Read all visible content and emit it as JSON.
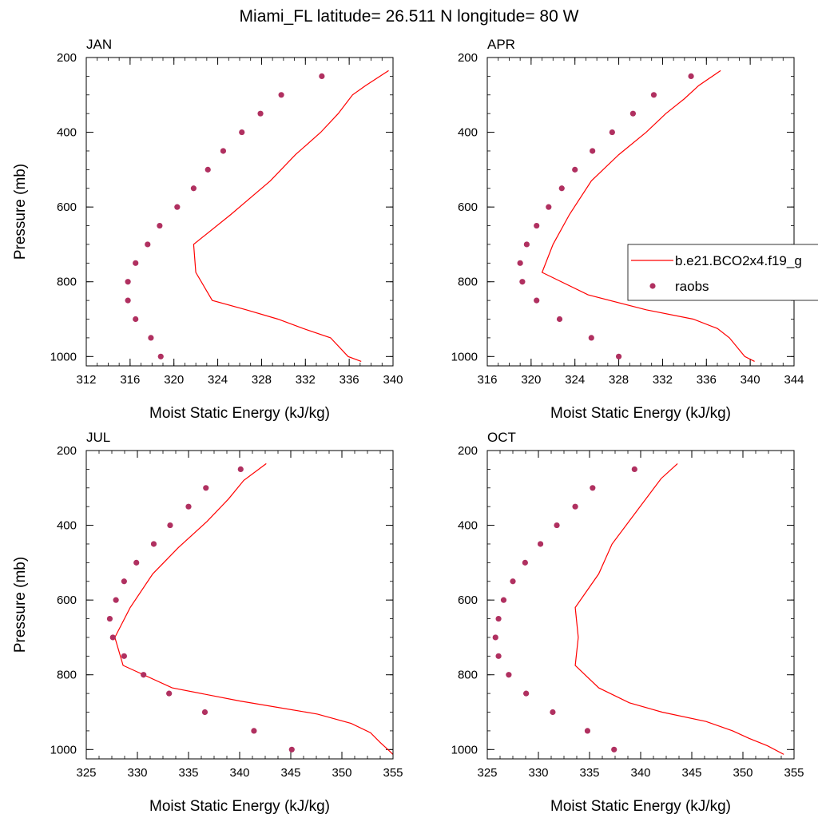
{
  "figure_title": "Miami_FL  latitude= 26.511 N longitude= 80 W",
  "legend": {
    "model_label": "b.e21.BCO2x4.f19_g",
    "obs_label": "raobs",
    "line_color": "#ff0000",
    "marker_color": "#b03060"
  },
  "chart_data": [
    {
      "type": "line",
      "title": "JAN",
      "xlabel": "Moist Static Energy (kJ/kg)",
      "ylabel": "Pressure (mb)",
      "xlim": [
        312,
        340
      ],
      "ylim": [
        200,
        1025
      ],
      "y_reversed": true,
      "xticks": [
        312,
        316,
        320,
        324,
        328,
        332,
        336,
        340
      ],
      "yticks": [
        200,
        400,
        600,
        800,
        1000
      ],
      "series": [
        {
          "name": "b.e21.BCO2x4.f19_g",
          "x": [
            337.1,
            335.9,
            334.3,
            331.8,
            329.5,
            326.6,
            323.5,
            322.0,
            321.8,
            325.2,
            328.8,
            331.1,
            333.4,
            335.0,
            336.3,
            337.5,
            339.6
          ],
          "y": [
            1013,
            1000,
            950,
            925,
            900,
            875,
            850,
            775,
            700,
            620,
            530,
            460,
            400,
            350,
            300,
            275,
            235
          ]
        },
        {
          "name": "raobs",
          "x": [
            318.8,
            317.9,
            316.5,
            315.8,
            315.8,
            316.5,
            317.6,
            318.7,
            320.3,
            321.8,
            323.1,
            324.5,
            326.2,
            327.9,
            329.8,
            333.5
          ],
          "y": [
            1000,
            950,
            900,
            850,
            800,
            750,
            700,
            650,
            600,
            550,
            500,
            450,
            400,
            350,
            300,
            250
          ]
        }
      ]
    },
    {
      "type": "line",
      "title": "APR",
      "xlabel": "Moist Static Energy (kJ/kg)",
      "ylabel": "",
      "xlim": [
        316,
        344
      ],
      "ylim": [
        200,
        1025
      ],
      "y_reversed": true,
      "xticks": [
        316,
        320,
        324,
        328,
        332,
        336,
        340,
        344
      ],
      "yticks": [
        200,
        400,
        600,
        800,
        1000
      ],
      "series": [
        {
          "name": "b.e21.BCO2x4.f19_g",
          "x": [
            340.4,
            339.5,
            338.1,
            337.0,
            334.8,
            330.5,
            325.2,
            321.0,
            322.0,
            323.5,
            325.5,
            328.0,
            330.5,
            332.3,
            334.0,
            335.3,
            337.3
          ],
          "y": [
            1013,
            1000,
            950,
            925,
            900,
            875,
            835,
            775,
            700,
            620,
            530,
            460,
            400,
            350,
            310,
            275,
            235
          ]
        },
        {
          "name": "raobs",
          "x": [
            328.0,
            325.5,
            322.6,
            320.5,
            319.2,
            319.0,
            319.6,
            320.5,
            321.6,
            322.8,
            324.0,
            325.6,
            327.4,
            329.3,
            331.2,
            334.6
          ],
          "y": [
            1000,
            950,
            900,
            850,
            800,
            750,
            700,
            650,
            600,
            550,
            500,
            450,
            400,
            350,
            300,
            250
          ]
        }
      ]
    },
    {
      "type": "line",
      "title": "JUL",
      "xlabel": "Moist Static Energy (kJ/kg)",
      "ylabel": "Pressure (mb)",
      "xlim": [
        325,
        355
      ],
      "ylim": [
        200,
        1025
      ],
      "y_reversed": true,
      "xticks": [
        325,
        330,
        335,
        340,
        345,
        350,
        355
      ],
      "yticks": [
        200,
        400,
        600,
        800,
        1000
      ],
      "series": [
        {
          "name": "b.e21.BCO2x4.f19_g",
          "x": [
            355.0,
            354.5,
            353.7,
            352.8,
            350.9,
            347.6,
            340.0,
            333.4,
            328.6,
            327.8,
            329.3,
            331.5,
            334.0,
            336.8,
            338.9,
            340.4,
            342.6
          ],
          "y": [
            1013,
            1000,
            980,
            955,
            930,
            905,
            870,
            835,
            775,
            700,
            620,
            530,
            460,
            390,
            330,
            280,
            235
          ]
        },
        {
          "name": "raobs",
          "x": [
            345.1,
            341.4,
            336.6,
            333.1,
            330.6,
            328.7,
            327.6,
            327.3,
            327.9,
            328.7,
            329.9,
            331.6,
            333.2,
            335.0,
            336.7,
            340.1
          ],
          "y": [
            1000,
            950,
            900,
            850,
            800,
            750,
            700,
            650,
            600,
            550,
            500,
            450,
            400,
            350,
            300,
            250
          ]
        }
      ]
    },
    {
      "type": "line",
      "title": "OCT",
      "xlabel": "Moist Static Energy (kJ/kg)",
      "ylabel": "",
      "xlim": [
        325,
        355
      ],
      "ylim": [
        200,
        1025
      ],
      "y_reversed": true,
      "xticks": [
        325,
        330,
        335,
        340,
        345,
        350,
        355
      ],
      "yticks": [
        200,
        400,
        600,
        800,
        1000
      ],
      "series": [
        {
          "name": "b.e21.BCO2x4.f19_g",
          "x": [
            354.0,
            352.4,
            350.6,
            349.0,
            346.4,
            342.1,
            338.9,
            335.9,
            333.6,
            333.9,
            333.6,
            335.9,
            337.2,
            339.4,
            342.0,
            343.6
          ],
          "y": [
            1013,
            990,
            970,
            950,
            925,
            900,
            875,
            835,
            775,
            700,
            620,
            530,
            450,
            370,
            275,
            235
          ]
        },
        {
          "name": "raobs",
          "x": [
            337.4,
            334.8,
            331.4,
            328.8,
            327.1,
            326.1,
            325.8,
            326.1,
            326.6,
            327.5,
            328.7,
            330.2,
            331.8,
            333.6,
            335.3,
            339.4
          ],
          "y": [
            1000,
            950,
            900,
            850,
            800,
            750,
            700,
            650,
            600,
            550,
            500,
            450,
            400,
            350,
            300,
            250
          ]
        }
      ]
    }
  ]
}
